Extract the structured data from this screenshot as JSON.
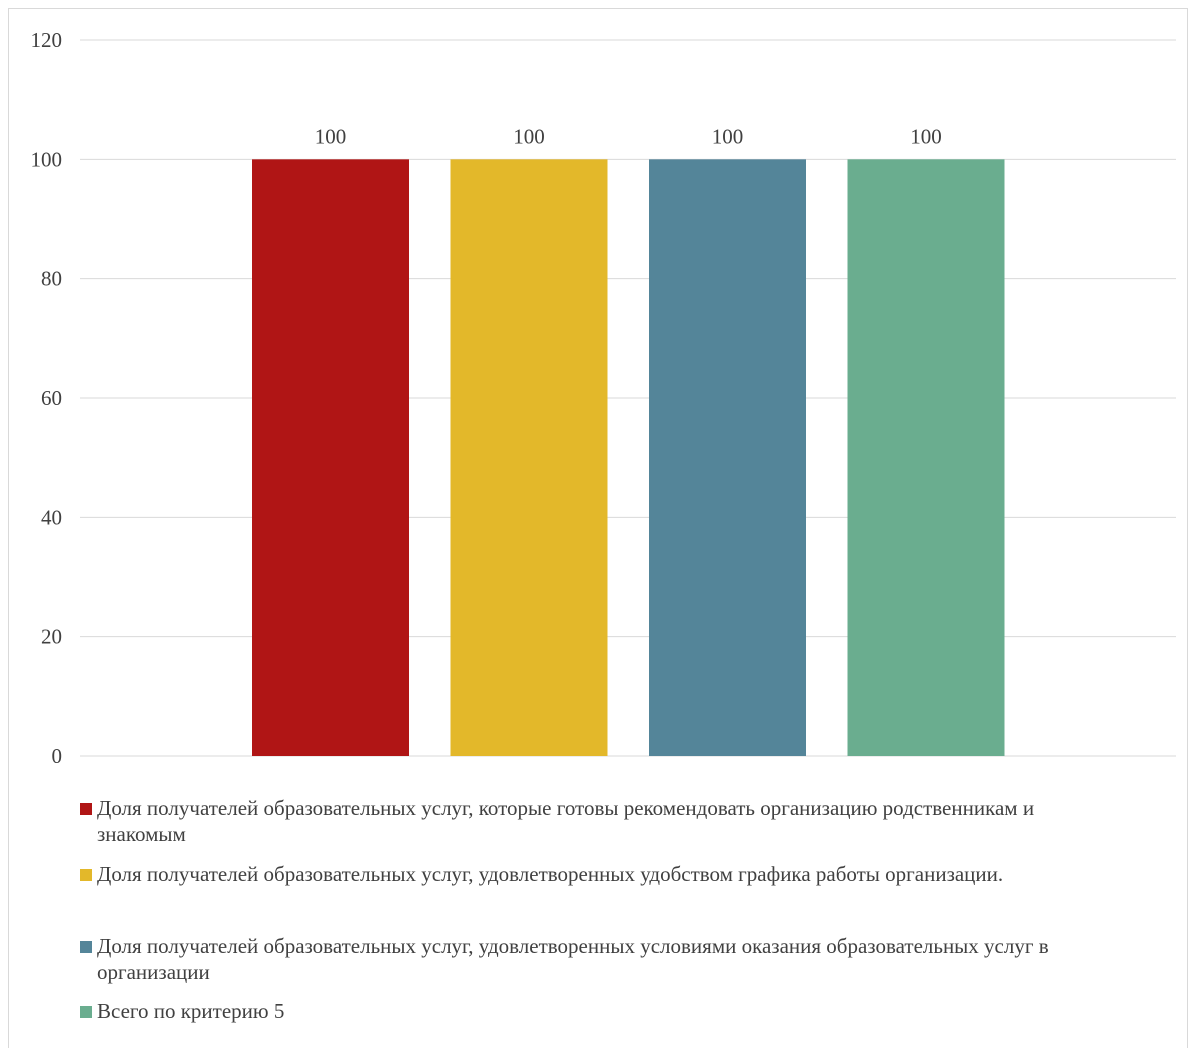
{
  "chart_data": {
    "type": "bar",
    "categories": [
      ""
    ],
    "ylim": [
      0,
      120
    ],
    "yticks": [
      0,
      20,
      40,
      60,
      80,
      100,
      120
    ],
    "grid": true,
    "legend_position": "bottom",
    "series": [
      {
        "name": "Доля получателей образовательных услуг, которые готовы рекомендовать организацию родственникам и знакомым",
        "values": [
          100
        ],
        "color": "#b01515"
      },
      {
        "name": "Доля получателей образовательных услуг, удовлетворенных удобством графика работы организации.",
        "values": [
          100
        ],
        "color": "#e3b82a"
      },
      {
        "name": "Доля получателей образовательных услуг, удовлетворенных условиями оказания образовательных услуг в организации",
        "values": [
          100
        ],
        "color": "#548599"
      },
      {
        "name": "Всего по критерию 5",
        "values": [
          100
        ],
        "color": "#6aad8f"
      }
    ],
    "data_labels": [
      "100",
      "100",
      "100",
      "100"
    ]
  }
}
